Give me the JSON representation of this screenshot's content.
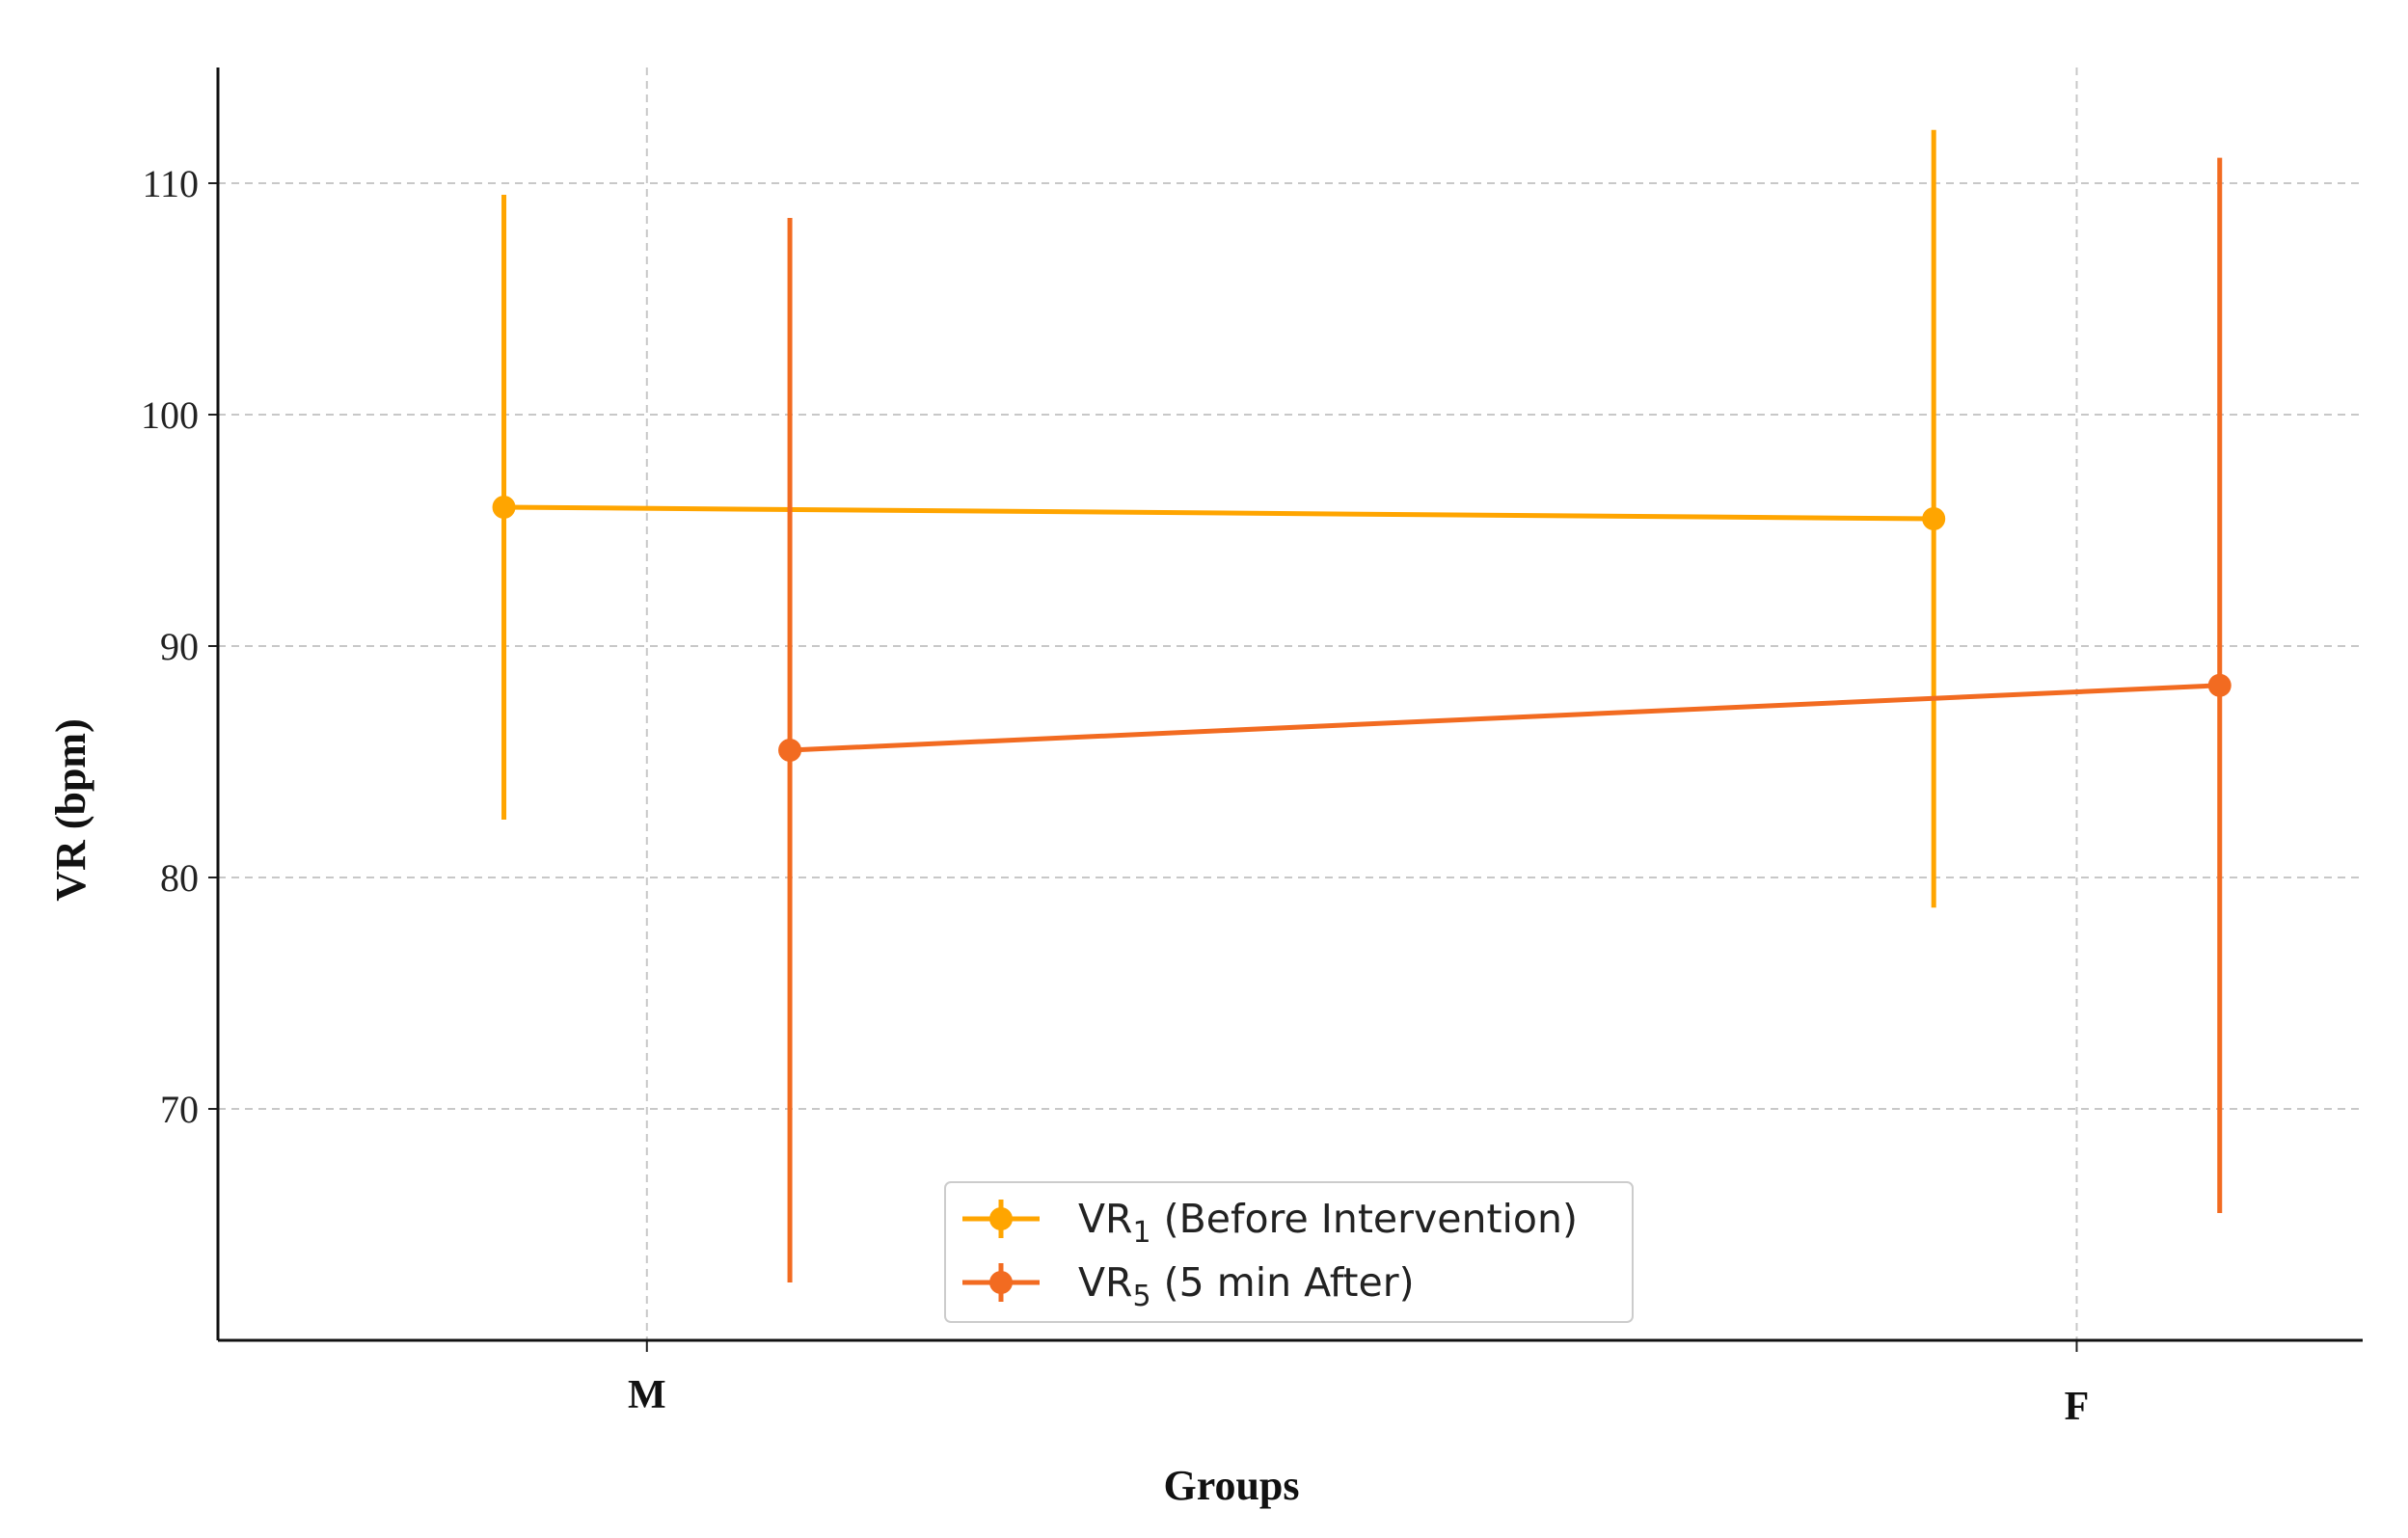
{
  "chart_data": {
    "type": "line",
    "xlabel": "Groups",
    "ylabel": "VR (bpm)",
    "categories": [
      "M",
      "F"
    ],
    "yticks": [
      70,
      80,
      90,
      100,
      110
    ],
    "ylim": [
      60,
      115
    ],
    "grid": true,
    "legend_position": "bottom-center",
    "series": [
      {
        "name": "VR",
        "name_sub": "1",
        "name_suffix": " (Before Intervention)",
        "color": "#FFA500",
        "offset": -0.1,
        "values": [
          96.0,
          95.5
        ],
        "error": [
          13.5,
          16.8
        ]
      },
      {
        "name": "VR",
        "name_sub": "5",
        "name_suffix": " (5 min After)",
        "color": "#F26B21",
        "offset": 0.1,
        "values": [
          85.5,
          88.3
        ],
        "error": [
          23.0,
          22.8
        ]
      }
    ]
  }
}
